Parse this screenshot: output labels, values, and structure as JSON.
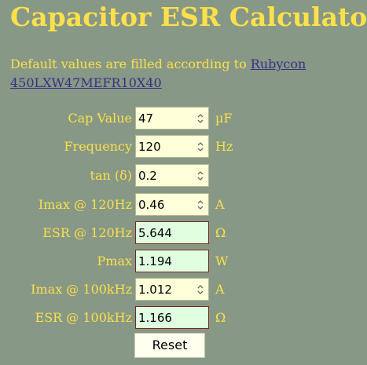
{
  "title": "Capacitor ESR Calculator",
  "intro": {
    "text": "Default values are filled according to ",
    "link_text": "Rubycon 450LXW47MEFR10X40"
  },
  "fields": [
    {
      "label": "Cap Value",
      "value": "47",
      "unit": "µF",
      "kind": "input"
    },
    {
      "label": "Frequency",
      "value": "120",
      "unit": "Hz",
      "kind": "input"
    },
    {
      "label": "tan (δ)",
      "value": "0.2",
      "unit": "",
      "kind": "input"
    },
    {
      "label": "Imax @ 120Hz",
      "value": "0.46",
      "unit": "A",
      "kind": "input"
    },
    {
      "label": "ESR @ 120Hz",
      "value": "5.644",
      "unit": "Ω",
      "kind": "output"
    },
    {
      "label": "Pmax",
      "value": "1.194",
      "unit": "W",
      "kind": "output"
    },
    {
      "label": "Imax @ 100kHz",
      "value": "1.012",
      "unit": "A",
      "kind": "input"
    },
    {
      "label": "ESR @ 100kHz",
      "value": "1.166",
      "unit": "Ω",
      "kind": "output"
    }
  ],
  "reset_label": "Reset",
  "colors": {
    "background": "#879886",
    "heading": "#fde04a",
    "link": "#3b2f86",
    "input_bg": "#ffffd9",
    "output_bg": "#e0ffe0"
  }
}
